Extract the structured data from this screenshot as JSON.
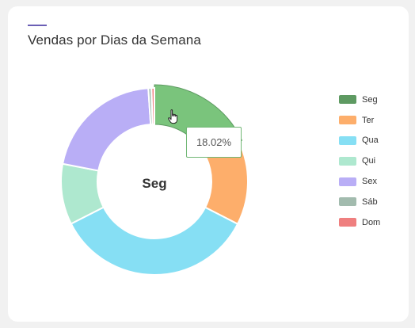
{
  "card": {
    "title": "Vendas por Dias da Semana"
  },
  "chart_data": {
    "type": "pie",
    "variant": "doughnut",
    "categories": [
      "Seg",
      "Ter",
      "Qua",
      "Qui",
      "Sex",
      "Sáb",
      "Dom"
    ],
    "values": [
      18.02,
      14.5,
      35.0,
      10.5,
      20.93,
      0.55,
      0.5
    ],
    "colors": [
      "#7ac47c",
      "#fdae6b",
      "#86dff4",
      "#aee8cf",
      "#b9aef6",
      "#a6c2b4",
      "#f28686"
    ],
    "hover_colors": [
      "#5e9a62",
      "#fdae6b",
      "#86dff4",
      "#aee8cf",
      "#b9aef6",
      "#a2bbae",
      "#ef7f7f"
    ],
    "center_label": "Seg",
    "tooltip": "18.02%",
    "legend_position": "right"
  },
  "colors": {
    "accent": "#6b5fb5",
    "background": "#f1f1f1",
    "card": "#ffffff",
    "tooltip_border": "#71b775"
  },
  "icons": {
    "cursor": "hand-pointer-icon"
  }
}
